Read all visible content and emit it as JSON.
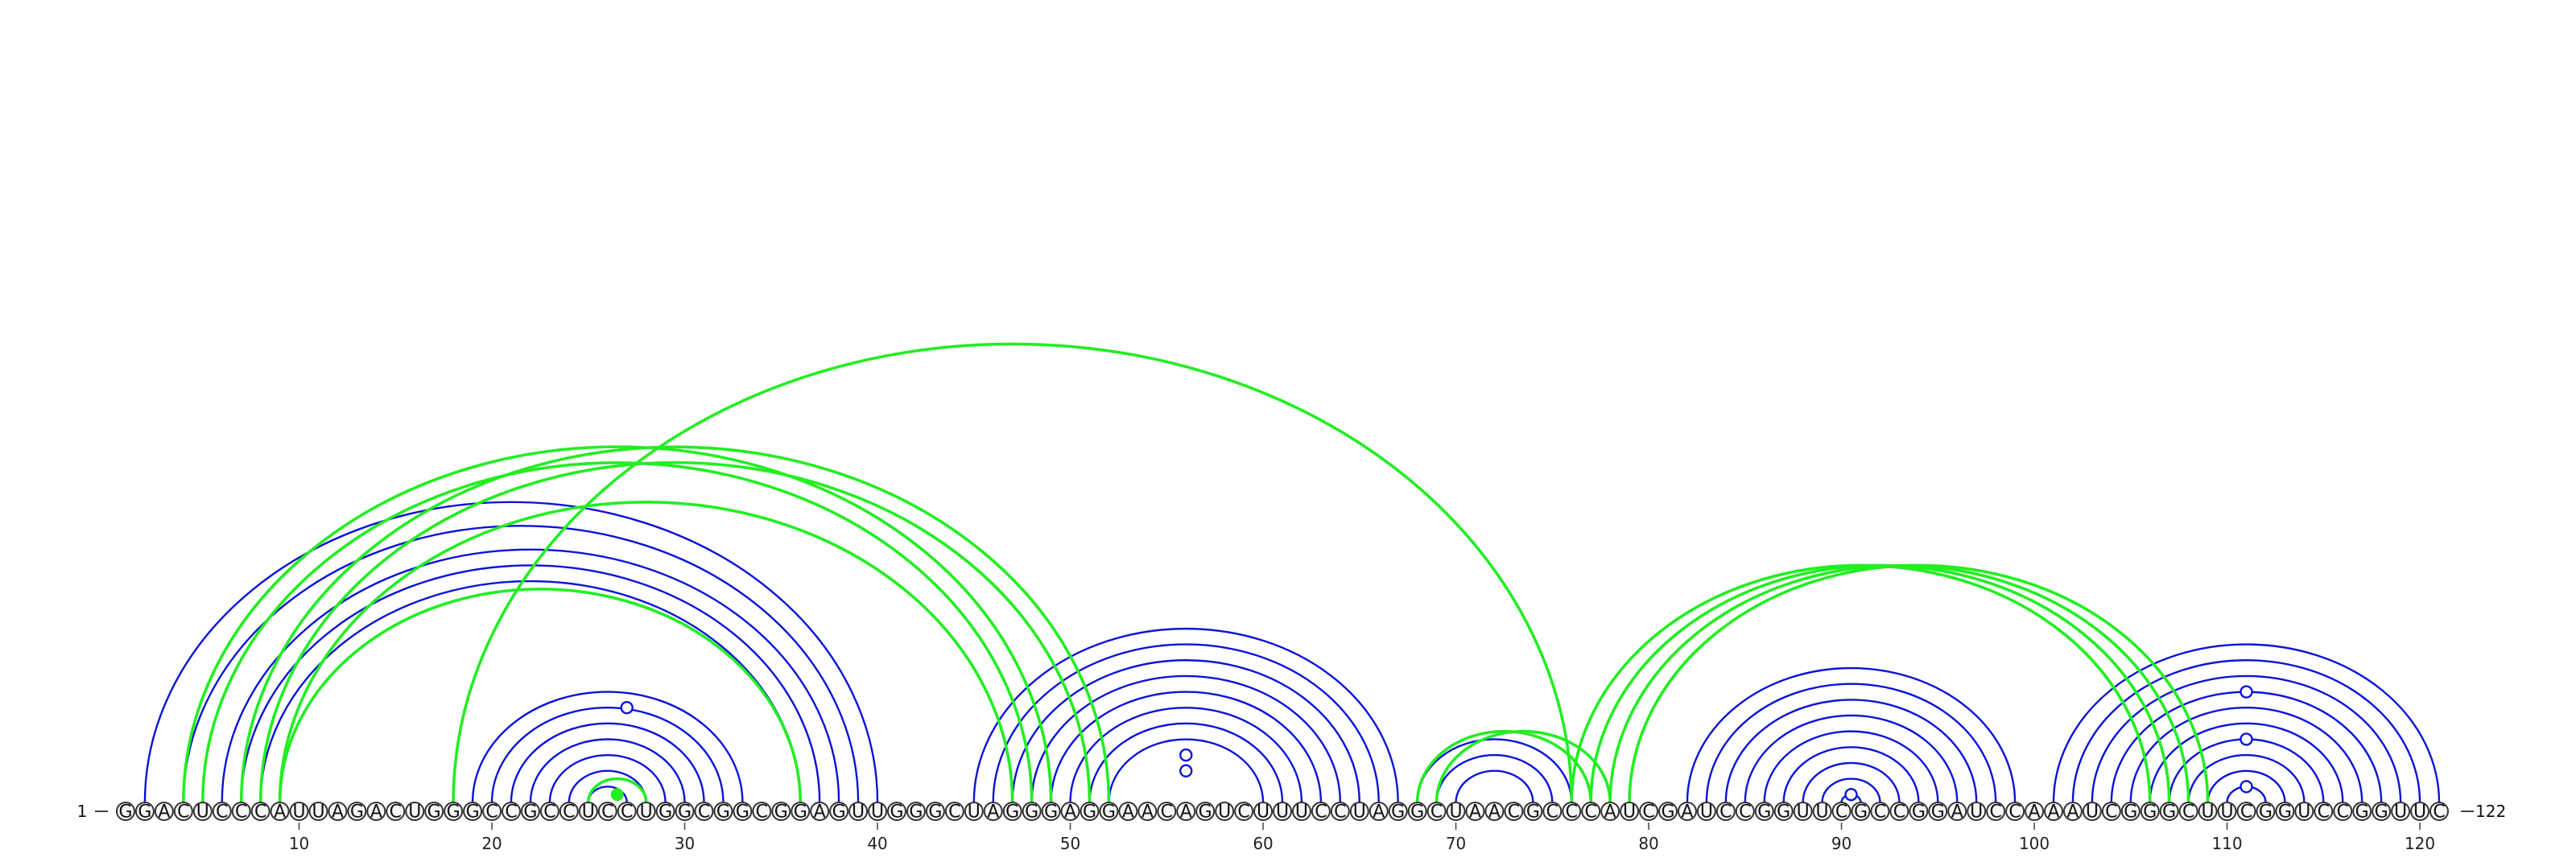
{
  "sequence": "GGACUCCCAUUAGACUGGGCCGCCUCCUGGCGGCGGAGUUGGGCUAGGGAGGAACAGUCUUUCCUAGGCUAACGCCCAUCGAUCCGGUUCGCCGGAUCCAAAUCGGGCUUCGGUCCGGUUC",
  "start_label": "1",
  "end_label": "122",
  "ticks": [
    10,
    20,
    30,
    40,
    50,
    60,
    70,
    80,
    90,
    100,
    110,
    120
  ],
  "colors": {
    "blue": "#0a14d6",
    "green": "#22ee22"
  },
  "arcs_blue": [
    [
      2,
      40
    ],
    [
      4,
      39
    ],
    [
      6,
      38
    ],
    [
      7,
      37
    ],
    [
      8,
      36
    ],
    [
      19,
      33
    ],
    [
      20,
      32
    ],
    [
      21,
      31
    ],
    [
      22,
      30
    ],
    [
      23,
      29
    ],
    [
      24,
      28
    ],
    [
      25,
      27
    ],
    [
      45,
      67
    ],
    [
      46,
      66
    ],
    [
      47,
      65
    ],
    [
      48,
      64
    ],
    [
      49,
      63
    ],
    [
      50,
      62
    ],
    [
      51,
      61
    ],
    [
      52,
      60
    ],
    [
      68,
      76
    ],
    [
      69,
      75
    ],
    [
      70,
      74
    ],
    [
      82,
      99
    ],
    [
      83,
      98
    ],
    [
      84,
      97
    ],
    [
      85,
      96
    ],
    [
      86,
      95
    ],
    [
      87,
      94
    ],
    [
      88,
      93
    ],
    [
      89,
      92
    ],
    [
      90,
      91
    ],
    [
      101,
      121
    ],
    [
      102,
      120
    ],
    [
      103,
      119
    ],
    [
      104,
      118
    ],
    [
      105,
      117
    ],
    [
      106,
      116
    ],
    [
      107,
      115
    ],
    [
      108,
      114
    ],
    [
      109,
      113
    ],
    [
      110,
      112
    ]
  ],
  "arcs_green": [
    [
      4,
      49
    ],
    [
      5,
      48
    ],
    [
      7,
      52
    ],
    [
      8,
      51
    ],
    [
      9,
      47
    ],
    [
      9,
      36
    ],
    [
      18,
      76
    ],
    [
      25,
      28
    ],
    [
      68,
      77
    ],
    [
      69,
      78
    ],
    [
      76,
      106
    ],
    [
      77,
      107
    ],
    [
      78,
      108
    ],
    [
      79,
      109
    ]
  ],
  "markers_blue": [
    {
      "i": 21,
      "j": 33
    },
    {
      "i": 53,
      "j": 59
    },
    {
      "i": 54,
      "j": 58
    },
    {
      "i": 90,
      "j": 91
    },
    {
      "i": 110,
      "j": 112
    },
    {
      "i": 107,
      "j": 115
    },
    {
      "i": 104,
      "j": 118
    }
  ],
  "markers_green": [
    {
      "i": 26,
      "j": 27
    }
  ]
}
